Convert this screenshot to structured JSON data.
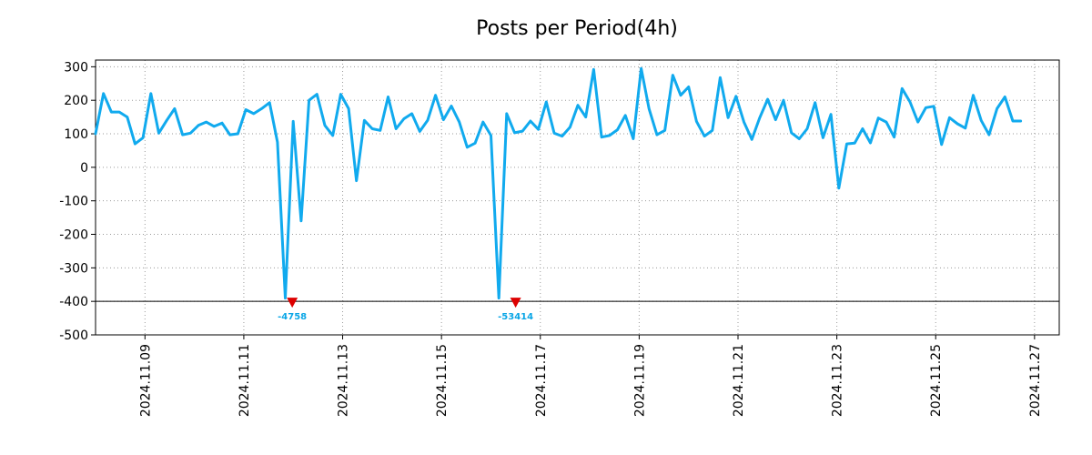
{
  "chart_data": {
    "type": "line",
    "title": "Posts per Period(4h)",
    "xlabel": "",
    "ylabel": "",
    "ylim": [
      -500,
      320
    ],
    "xlim_days": [
      0.0,
      19.5
    ],
    "x_unit": "days since 2024.11.08 00:00",
    "grid": true,
    "legend": "none",
    "color": "#11aaee",
    "clip_marker_color": "#dd0000",
    "y_ticks": [
      300,
      200,
      100,
      0,
      -100,
      -200,
      -300,
      -400,
      -500
    ],
    "x_ticks": [
      {
        "label": "2024.11.09",
        "day": 1
      },
      {
        "label": "2024.11.11",
        "day": 3
      },
      {
        "label": "2024.11.13",
        "day": 5
      },
      {
        "label": "2024.11.15",
        "day": 7
      },
      {
        "label": "2024.11.17",
        "day": 9
      },
      {
        "label": "2024.11.19",
        "day": 11
      },
      {
        "label": "2024.11.21",
        "day": 13
      },
      {
        "label": "2024.11.23",
        "day": 15
      },
      {
        "label": "2024.11.25",
        "day": 17
      },
      {
        "label": "2024.11.27",
        "day": 19
      }
    ],
    "clip_floor": -400,
    "clipped_labels": [
      {
        "day": 3.98,
        "label": "-4758"
      },
      {
        "day": 8.5,
        "label": "-53414"
      }
    ],
    "series": [
      {
        "name": "Posts",
        "points": [
          [
            0.0,
            100
          ],
          [
            0.16,
            220
          ],
          [
            0.32,
            165
          ],
          [
            0.48,
            165
          ],
          [
            0.64,
            150
          ],
          [
            0.8,
            70
          ],
          [
            0.96,
            88
          ],
          [
            1.12,
            220
          ],
          [
            1.28,
            102
          ],
          [
            1.44,
            140
          ],
          [
            1.6,
            175
          ],
          [
            1.76,
            97
          ],
          [
            1.92,
            102
          ],
          [
            2.08,
            125
          ],
          [
            2.24,
            135
          ],
          [
            2.4,
            122
          ],
          [
            2.56,
            132
          ],
          [
            2.72,
            97
          ],
          [
            2.88,
            100
          ],
          [
            3.04,
            172
          ],
          [
            3.2,
            160
          ],
          [
            3.36,
            175
          ],
          [
            3.52,
            193
          ],
          [
            3.68,
            75
          ],
          [
            3.84,
            -390
          ],
          [
            4.0,
            137
          ],
          [
            4.16,
            -160
          ],
          [
            4.32,
            200
          ],
          [
            4.48,
            218
          ],
          [
            4.64,
            125
          ],
          [
            4.8,
            95
          ],
          [
            4.96,
            218
          ],
          [
            5.12,
            175
          ],
          [
            5.28,
            -40
          ],
          [
            5.44,
            140
          ],
          [
            5.6,
            115
          ],
          [
            5.76,
            110
          ],
          [
            5.92,
            210
          ],
          [
            6.08,
            115
          ],
          [
            6.24,
            145
          ],
          [
            6.4,
            160
          ],
          [
            6.56,
            107
          ],
          [
            6.72,
            140
          ],
          [
            6.88,
            215
          ],
          [
            7.04,
            142
          ],
          [
            7.2,
            183
          ],
          [
            7.36,
            135
          ],
          [
            7.52,
            60
          ],
          [
            7.68,
            72
          ],
          [
            7.84,
            135
          ],
          [
            8.0,
            95
          ],
          [
            8.16,
            -390
          ],
          [
            8.32,
            160
          ],
          [
            8.48,
            103
          ],
          [
            8.64,
            108
          ],
          [
            8.8,
            138
          ],
          [
            8.96,
            113
          ],
          [
            9.12,
            195
          ],
          [
            9.28,
            102
          ],
          [
            9.44,
            93
          ],
          [
            9.6,
            120
          ],
          [
            9.76,
            185
          ],
          [
            9.92,
            150
          ],
          [
            10.08,
            292
          ],
          [
            10.24,
            90
          ],
          [
            10.4,
            95
          ],
          [
            10.56,
            112
          ],
          [
            10.72,
            155
          ],
          [
            10.88,
            85
          ],
          [
            11.04,
            295
          ],
          [
            11.2,
            175
          ],
          [
            11.36,
            97
          ],
          [
            11.52,
            110
          ],
          [
            11.68,
            275
          ],
          [
            11.84,
            215
          ],
          [
            12.0,
            240
          ],
          [
            12.16,
            137
          ],
          [
            12.32,
            93
          ],
          [
            12.48,
            110
          ],
          [
            12.64,
            268
          ],
          [
            12.8,
            148
          ],
          [
            12.96,
            212
          ],
          [
            13.12,
            135
          ],
          [
            13.28,
            83
          ],
          [
            13.44,
            148
          ],
          [
            13.6,
            203
          ],
          [
            13.76,
            142
          ],
          [
            13.92,
            200
          ],
          [
            14.08,
            103
          ],
          [
            14.24,
            85
          ],
          [
            14.4,
            115
          ],
          [
            14.56,
            193
          ],
          [
            14.72,
            88
          ],
          [
            14.88,
            158
          ],
          [
            15.04,
            -62
          ],
          [
            15.2,
            70
          ],
          [
            15.36,
            72
          ],
          [
            15.52,
            115
          ],
          [
            15.68,
            73
          ],
          [
            15.84,
            147
          ],
          [
            16.0,
            135
          ],
          [
            16.16,
            90
          ],
          [
            16.32,
            235
          ],
          [
            16.48,
            195
          ],
          [
            16.64,
            135
          ],
          [
            16.8,
            178
          ],
          [
            16.96,
            182
          ],
          [
            17.12,
            68
          ],
          [
            17.28,
            148
          ],
          [
            17.44,
            130
          ],
          [
            17.6,
            117
          ],
          [
            17.76,
            215
          ],
          [
            17.92,
            140
          ],
          [
            18.08,
            97
          ],
          [
            18.24,
            175
          ],
          [
            18.4,
            210
          ],
          [
            18.56,
            138
          ],
          [
            18.72,
            138
          ]
        ]
      }
    ]
  }
}
